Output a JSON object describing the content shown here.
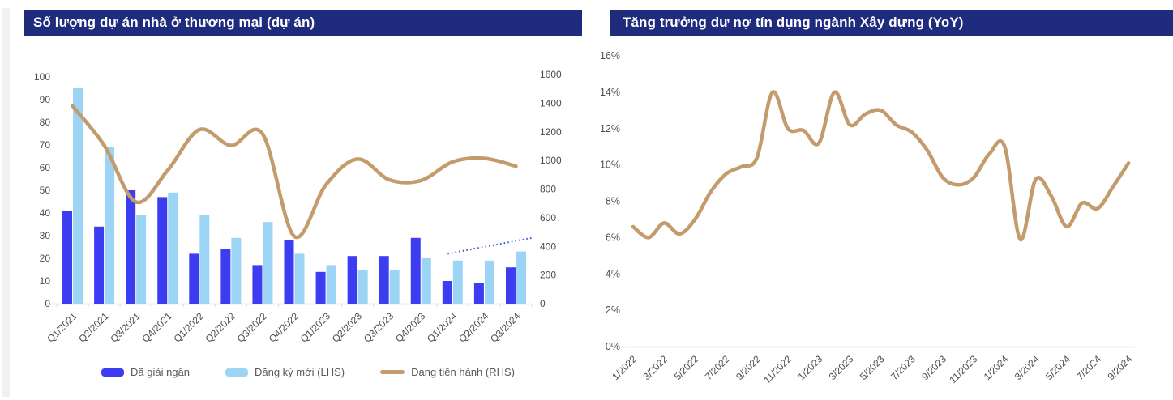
{
  "page": {
    "background": "#FFFFFF"
  },
  "panels": {
    "left": {
      "title": "Số lượng dự án nhà ở thương mại (dự án)"
    },
    "right": {
      "title": "Tăng trưởng dư nợ tín dụng ngành Xây dựng (YoY)"
    }
  },
  "colors": {
    "title_bar_bg": "#1F2C7D",
    "title_text": "#FFFFFF",
    "bar_dark_blue": "#3C3CF0",
    "bar_light_blue": "#9CD4F5",
    "line_tan": "#C49B6D",
    "trendline_blue": "#3050D0",
    "axis_text": "#4D4D4D",
    "axis_line": "#DCDCDC",
    "legend_text": "#595959"
  },
  "chart_data": [
    {
      "type": "bar",
      "subtype": "combo-bar-line",
      "title": "Số lượng dự án nhà ở thương mại (dự án)",
      "categories": [
        "Q1/2021",
        "Q2/2021",
        "Q3/2021",
        "Q4/2021",
        "Q1/2022",
        "Q2/2022",
        "Q3/2022",
        "Q4/2022",
        "Q1/2023",
        "Q2/2023",
        "Q3/2023",
        "Q4/2023",
        "Q1/2024",
        "Q2/2024",
        "Q3/2024"
      ],
      "series": [
        {
          "name": "Đã giải ngân",
          "kind": "bar",
          "axis": "left",
          "values": [
            41,
            34,
            50,
            47,
            22,
            24,
            17,
            28,
            14,
            21,
            21,
            29,
            10,
            9,
            16
          ]
        },
        {
          "name": "Đăng ký mới (LHS)",
          "kind": "bar",
          "axis": "left",
          "values": [
            95,
            69,
            39,
            49,
            39,
            29,
            36,
            22,
            17,
            15,
            15,
            20,
            19,
            19,
            23
          ]
        },
        {
          "name": "Đang tiến hành (RHS)",
          "kind": "line",
          "axis": "right",
          "values": [
            1380,
            1105,
            710,
            930,
            1215,
            1105,
            1185,
            470,
            830,
            1010,
            865,
            860,
            990,
            1015,
            960
          ]
        }
      ],
      "left_axis": {
        "min": 0,
        "max": 100,
        "step": 10
      },
      "right_axis": {
        "min": 0,
        "max": 1600,
        "step": 200
      },
      "trendline": {
        "style": "dotted",
        "from_category": "Q1/2024",
        "start_value_lhs": 22,
        "end_value_lhs": 29
      },
      "legend_position": "bottom",
      "grid": false
    },
    {
      "type": "line",
      "title": "Tăng trưởng dư nợ tín dụng ngành Xây dựng (YoY)",
      "x": [
        "1/2022",
        "2/2022",
        "3/2022",
        "4/2022",
        "5/2022",
        "6/2022",
        "7/2022",
        "8/2022",
        "9/2022",
        "10/2022",
        "11/2022",
        "12/2022",
        "1/2023",
        "2/2023",
        "3/2023",
        "4/2023",
        "5/2023",
        "6/2023",
        "7/2023",
        "8/2023",
        "9/2023",
        "10/2023",
        "11/2023",
        "12/2023",
        "1/2024",
        "2/2024",
        "3/2024",
        "4/2024",
        "5/2024",
        "6/2024",
        "7/2024",
        "8/2024",
        "9/2024"
      ],
      "values": [
        6.6,
        6.0,
        6.8,
        6.2,
        7.0,
        8.5,
        9.5,
        9.9,
        10.4,
        14.0,
        12.0,
        11.9,
        11.2,
        14.0,
        12.2,
        12.8,
        13.0,
        12.2,
        11.8,
        10.8,
        9.3,
        8.9,
        9.3,
        10.6,
        11.0,
        5.9,
        9.2,
        8.3,
        6.6,
        7.9,
        7.6,
        8.8,
        10.1
      ],
      "yaxis": {
        "min": 0,
        "max": 16,
        "step": 2,
        "format": "percent"
      },
      "x_label_every": 2,
      "grid": false,
      "legend": false
    }
  ]
}
